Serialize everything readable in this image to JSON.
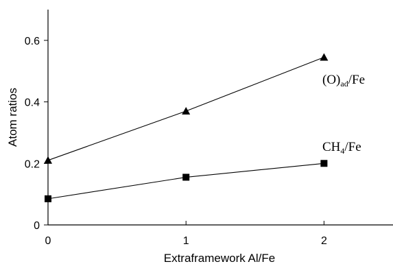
{
  "chart_data": {
    "type": "line",
    "title": "",
    "xlabel": "Extraframework Al/Fe",
    "ylabel": "Atom ratios",
    "xlim": [
      0,
      2.5
    ],
    "ylim": [
      0,
      0.7
    ],
    "x_ticks": [
      0,
      1,
      2
    ],
    "x_tick_labels": [
      "0",
      "1",
      "2"
    ],
    "y_ticks": [
      0,
      0.2,
      0.4,
      0.6
    ],
    "y_tick_labels": [
      "0",
      "0.2",
      "0.4",
      "0.6"
    ],
    "grid": false,
    "legend": "none",
    "series": [
      {
        "name": "(O)ad/Fe",
        "label_main": "(O)",
        "label_sub": "ad",
        "label_tail": "/Fe",
        "marker": "triangle",
        "x": [
          0,
          1,
          2
        ],
        "y": [
          0.21,
          0.37,
          0.545
        ]
      },
      {
        "name": "CH4/Fe",
        "label_main": "CH",
        "label_sub": "4",
        "label_tail": "/Fe",
        "marker": "square",
        "x": [
          0,
          1,
          2
        ],
        "y": [
          0.085,
          0.155,
          0.2
        ]
      }
    ]
  }
}
